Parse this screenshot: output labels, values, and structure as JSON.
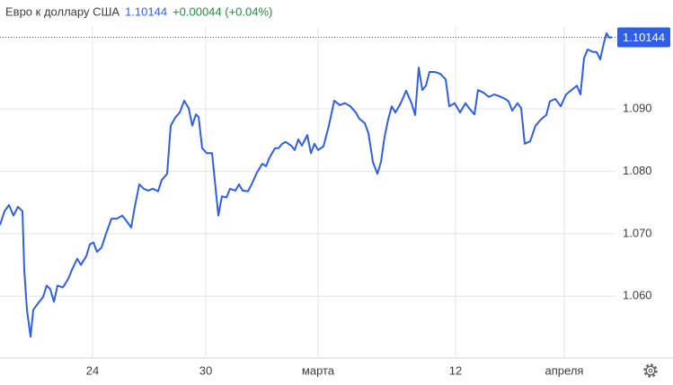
{
  "chart_data": {
    "type": "line",
    "title": "Евро к доллару США",
    "change": "+0.00044 (+0.04%)",
    "x": [
      0,
      1,
      2,
      3,
      4,
      5,
      5.4,
      6,
      6.8,
      7.4,
      8.4,
      9.6,
      10.4,
      11.2,
      12,
      12.8,
      14,
      15.2,
      16,
      17.2,
      18,
      19.2,
      20,
      20.8,
      21.6,
      22.6,
      23.6,
      24.8,
      26,
      27.2,
      28,
      29.2,
      30,
      31,
      32,
      33,
      34,
      35.2,
      36,
      37.2,
      38,
      39,
      40,
      41,
      42,
      42.8,
      43.6,
      44.2,
      45,
      46,
      47.2,
      48,
      48.6,
      49.4,
      50.4,
      51.2,
      52.4,
      53.2,
      54,
      55.2,
      56,
      57.2,
      58.4,
      59.2,
      60,
      61.2,
      62,
      62.8,
      63.6,
      64.8,
      65.6,
      66.4,
      67.2,
      68.4,
      69.2,
      70,
      70.8,
      72,
      73.2,
      74.4,
      75.6,
      76.8,
      78,
      79.2,
      80,
      81.2,
      82,
      83,
      84,
      84.8,
      85.6,
      86.4,
      87.2,
      88,
      89.2,
      90.4,
      91.6,
      92.4,
      93.2,
      94,
      94.8,
      95.6,
      96.8,
      98,
      99.2,
      100,
      101.2,
      102.4,
      103.6,
      104.4,
      105.6,
      106.4,
      107.6,
      108.8,
      110,
      111.2,
      112.4,
      113.2,
      114,
      115.2,
      116,
      116.8,
      118,
      119.2,
      120.4,
      121.6,
      122.4,
      123.6,
      124.8,
      126,
      127.2,
      128.4,
      129.2,
      130,
      130.8,
      132,
      132.8,
      133.6,
      134.4,
      135,
      135.6,
      136.2
    ],
    "series": [
      {
        "color": "#2f5fe6",
        "values": [
          1.0714,
          1.0736,
          1.0746,
          1.0729,
          1.0743,
          1.0736,
          1.0642,
          1.0578,
          1.0535,
          1.0578,
          1.0588,
          1.0599,
          1.0617,
          1.0611,
          1.0591,
          1.0617,
          1.0614,
          1.0628,
          1.0642,
          1.066,
          1.065,
          1.0664,
          1.0683,
          1.0686,
          1.0671,
          1.0678,
          1.07,
          1.0724,
          1.0724,
          1.0729,
          1.0722,
          1.071,
          1.0743,
          1.0779,
          1.0772,
          1.0769,
          1.0772,
          1.0768,
          1.0786,
          1.0796,
          1.0873,
          1.0886,
          1.0894,
          1.0913,
          1.0901,
          1.0873,
          1.0891,
          1.0887,
          1.0837,
          1.0829,
          1.0829,
          1.0772,
          1.0729,
          1.076,
          1.0758,
          1.0772,
          1.0769,
          1.0779,
          1.0769,
          1.0768,
          1.0779,
          1.0798,
          1.0812,
          1.0808,
          1.0822,
          1.0837,
          1.0837,
          1.0844,
          1.0847,
          1.0841,
          1.0834,
          1.0851,
          1.0841,
          1.0858,
          1.0829,
          1.0844,
          1.0834,
          1.084,
          1.0873,
          1.0913,
          1.0906,
          1.0909,
          1.0904,
          1.0894,
          1.0884,
          1.0877,
          1.0861,
          1.0815,
          1.0796,
          1.0815,
          1.0855,
          1.0883,
          1.0904,
          1.0894,
          1.0909,
          1.0929,
          1.0909,
          1.089,
          1.0966,
          1.093,
          1.0937,
          1.0959,
          1.0959,
          1.0956,
          1.0947,
          1.0904,
          1.0909,
          1.0894,
          1.0909,
          1.0901,
          1.0891,
          1.093,
          1.0926,
          1.0919,
          1.0923,
          1.092,
          1.0916,
          1.0912,
          1.0897,
          1.0909,
          1.0901,
          1.0844,
          1.0848,
          1.0873,
          1.0883,
          1.089,
          1.0912,
          1.0916,
          1.0904,
          1.0923,
          1.093,
          1.0937,
          1.0923,
          1.0981,
          1.0995,
          1.0991,
          1.0991,
          1.0979,
          1.1005,
          1.1021,
          1.1014,
          1.10144
        ]
      }
    ],
    "change_color": "#1e8e3e",
    "xlim": [
      0,
      137
    ],
    "xticks": [
      {
        "value": 20.6,
        "label": "24"
      },
      {
        "value": 45.8,
        "label": "30"
      },
      {
        "value": 70.8,
        "label": "марта"
      },
      {
        "value": 101.4,
        "label": "12"
      },
      {
        "value": 125.6,
        "label": "апреля"
      }
    ],
    "ylim": [
      1.0501,
      1.1031
    ],
    "yticks": [
      {
        "value": 1.06,
        "label": "1.060"
      },
      {
        "value": 1.07,
        "label": "1.070"
      },
      {
        "value": 1.08,
        "label": "1.080"
      },
      {
        "value": 1.09,
        "label": "1.090"
      }
    ],
    "grid": true
  }
}
